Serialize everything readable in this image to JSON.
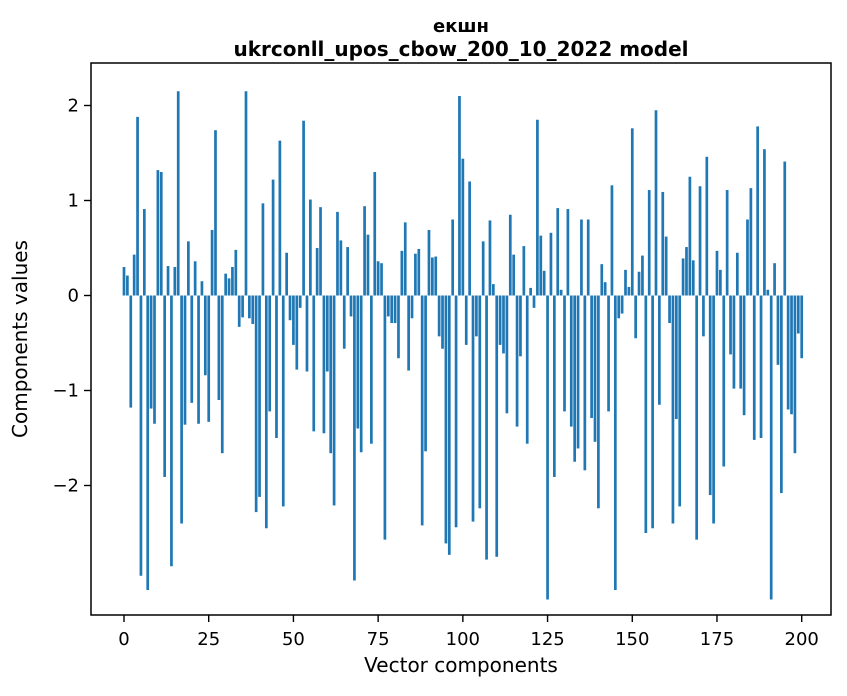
{
  "chart_data": {
    "type": "bar",
    "title": "екшн",
    "subtitle": "ukrconll_upos_cbow_200_10_2022 model",
    "xlabel": "Vector components",
    "ylabel": "Components values",
    "bar_color": "#1f77b4",
    "background": "#ffffff",
    "x_ticks": [
      0,
      25,
      50,
      75,
      100,
      125,
      150,
      175,
      200
    ],
    "y_ticks": [
      2,
      1,
      0,
      -1,
      -2
    ],
    "xlim": [
      -10,
      209
    ],
    "ylim": [
      -3.36,
      2.45
    ],
    "grid": false,
    "legend": "none",
    "categories_note": "x = vector component index 0..200",
    "values": [
      0.3,
      0.21,
      -1.18,
      0.43,
      1.88,
      -2.95,
      0.91,
      -3.1,
      -1.19,
      -1.35,
      1.32,
      1.3,
      -1.91,
      0.31,
      -2.85,
      0.3,
      2.15,
      -2.4,
      -1.36,
      0.57,
      -1.13,
      0.36,
      -1.35,
      0.15,
      -0.84,
      -1.33,
      0.69,
      1.74,
      -1.1,
      -1.66,
      0.23,
      0.18,
      0.3,
      0.48,
      -0.33,
      -0.23,
      2.15,
      -0.24,
      -0.3,
      -2.28,
      -2.12,
      0.97,
      -2.45,
      -1.22,
      1.22,
      -1.5,
      1.63,
      -2.22,
      0.45,
      -0.26,
      -0.52,
      -0.78,
      -0.13,
      1.84,
      -0.8,
      1.01,
      -1.43,
      0.5,
      0.93,
      -1.45,
      -0.8,
      -1.66,
      -2.21,
      0.88,
      0.58,
      -0.56,
      0.51,
      -0.22,
      -3.0,
      -1.4,
      -1.65,
      0.94,
      0.64,
      -1.56,
      1.3,
      0.36,
      0.34,
      -2.57,
      -0.22,
      -0.29,
      -0.29,
      -0.66,
      0.47,
      0.77,
      -0.79,
      -0.24,
      0.44,
      0.49,
      -2.42,
      -1.64,
      0.69,
      0.4,
      0.41,
      -0.43,
      -0.56,
      -2.61,
      -2.73,
      0.8,
      -2.44,
      2.1,
      1.44,
      -0.52,
      1.2,
      -2.38,
      -0.43,
      -2.24,
      0.57,
      -2.78,
      0.79,
      0.12,
      -2.75,
      -0.52,
      -0.61,
      -1.24,
      0.85,
      0.43,
      -1.38,
      -0.64,
      0.52,
      -1.56,
      0.08,
      -0.13,
      1.85,
      0.63,
      0.26,
      -3.2,
      0.66,
      -1.91,
      0.92,
      0.06,
      -1.22,
      0.91,
      -1.38,
      -1.75,
      -1.61,
      0.8,
      -1.84,
      0.8,
      -1.29,
      -1.54,
      -2.24,
      0.33,
      0.14,
      -1.22,
      1.16,
      -3.1,
      -0.24,
      -0.19,
      0.27,
      0.09,
      1.76,
      -0.45,
      0.25,
      0.42,
      -2.5,
      1.11,
      -2.45,
      1.95,
      -1.15,
      1.09,
      0.62,
      -0.29,
      -2.4,
      -1.3,
      -2.22,
      0.39,
      0.51,
      1.25,
      0.37,
      -2.57,
      1.15,
      -0.43,
      1.46,
      -2.1,
      -2.4,
      0.47,
      0.27,
      -1.8,
      1.11,
      -0.62,
      -0.98,
      0.45,
      -0.98,
      -1.26,
      0.8,
      1.13,
      -1.52,
      1.78,
      -1.5,
      1.54,
      0.06,
      -3.2,
      0.34,
      -0.73,
      -2.08,
      1.41,
      -1.2,
      -1.25,
      -1.66,
      -0.4,
      -0.66
    ]
  }
}
